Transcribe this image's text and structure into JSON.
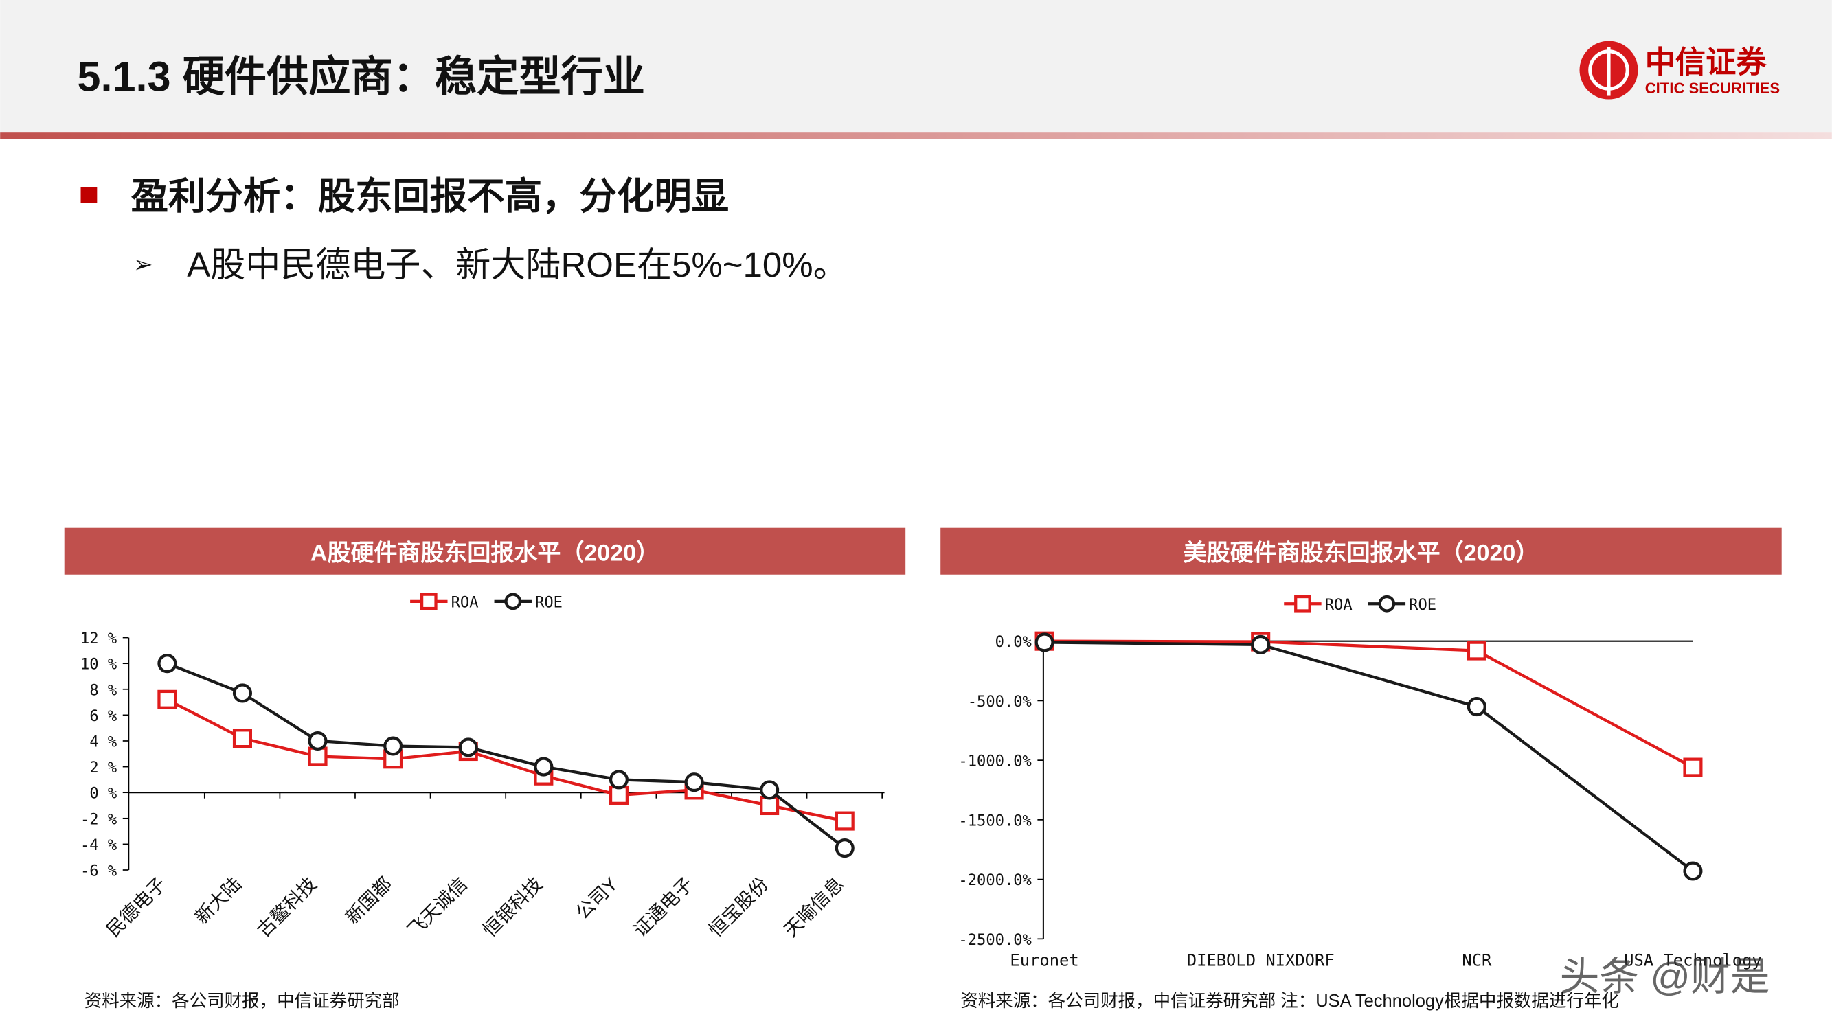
{
  "header": {
    "title": "5.1.3 硬件供应商：稳定型行业",
    "logo_cn": "中信证券",
    "logo_en": "CITIC SECURITIES"
  },
  "bullets": {
    "main": "盈利分析：股东回报不高，分化明显",
    "sub": "A股中民德电子、新大陆ROE在5%~10%。"
  },
  "chart_data": [
    {
      "type": "line",
      "title": "A股硬件商股东回报水平（2020）",
      "categories": [
        "民德电子",
        "新大陆",
        "古鳌科技",
        "新国都",
        "飞天诚信",
        "恒银科技",
        "公司Y",
        "证通电子",
        "恒宝股份",
        "天喻信息"
      ],
      "series": [
        {
          "name": "ROA",
          "color": "#e01c1c",
          "marker": "square",
          "values": [
            7.2,
            4.2,
            2.8,
            2.6,
            3.2,
            1.3,
            -0.2,
            0.2,
            -1.0,
            -2.2
          ]
        },
        {
          "name": "ROE",
          "color": "#1a1a1a",
          "marker": "circle",
          "values": [
            10.0,
            7.7,
            4.0,
            3.6,
            3.5,
            2.0,
            1.0,
            0.8,
            0.2,
            -4.3
          ]
        }
      ],
      "ylim": [
        -6,
        12
      ],
      "yticks": [
        {
          "value": 12,
          "label": "12 %"
        },
        {
          "value": 10,
          "label": "10 %"
        },
        {
          "value": 8,
          "label": "8 %"
        },
        {
          "value": 6,
          "label": "6 %"
        },
        {
          "value": 4,
          "label": "4 %"
        },
        {
          "value": 2,
          "label": "2 %"
        },
        {
          "value": 0,
          "label": "0 %"
        },
        {
          "value": -2,
          "label": "-2 %"
        },
        {
          "value": -4,
          "label": "-4 %"
        },
        {
          "value": -6,
          "label": "-6 %"
        }
      ],
      "source": "资料来源：各公司财报，中信证券研究部"
    },
    {
      "type": "line",
      "title": "美股硬件商股东回报水平（2020）",
      "categories": [
        "Euronet",
        "DIEBOLD NIXDORF",
        "NCR",
        "USA Technology"
      ],
      "series": [
        {
          "name": "ROA",
          "color": "#e01c1c",
          "marker": "square",
          "values": [
            0,
            -5,
            -80,
            -1060
          ]
        },
        {
          "name": "ROE",
          "color": "#1a1a1a",
          "marker": "circle",
          "values": [
            -10,
            -30,
            -550,
            -1930
          ]
        }
      ],
      "ylim": [
        -2500,
        0
      ],
      "yticks": [
        {
          "value": 0,
          "label": "0.0%"
        },
        {
          "value": -500,
          "label": "-500.0%"
        },
        {
          "value": -1000,
          "label": "-1000.0%"
        },
        {
          "value": -1500,
          "label": "-1500.0%"
        },
        {
          "value": -2000,
          "label": "-2000.0%"
        },
        {
          "value": -2500,
          "label": "-2500.0%"
        }
      ],
      "source": "资料来源：各公司财报，中信证券研究部 注：USA Technology根据中报数据进行年化"
    }
  ],
  "watermark": "头条 @财是"
}
